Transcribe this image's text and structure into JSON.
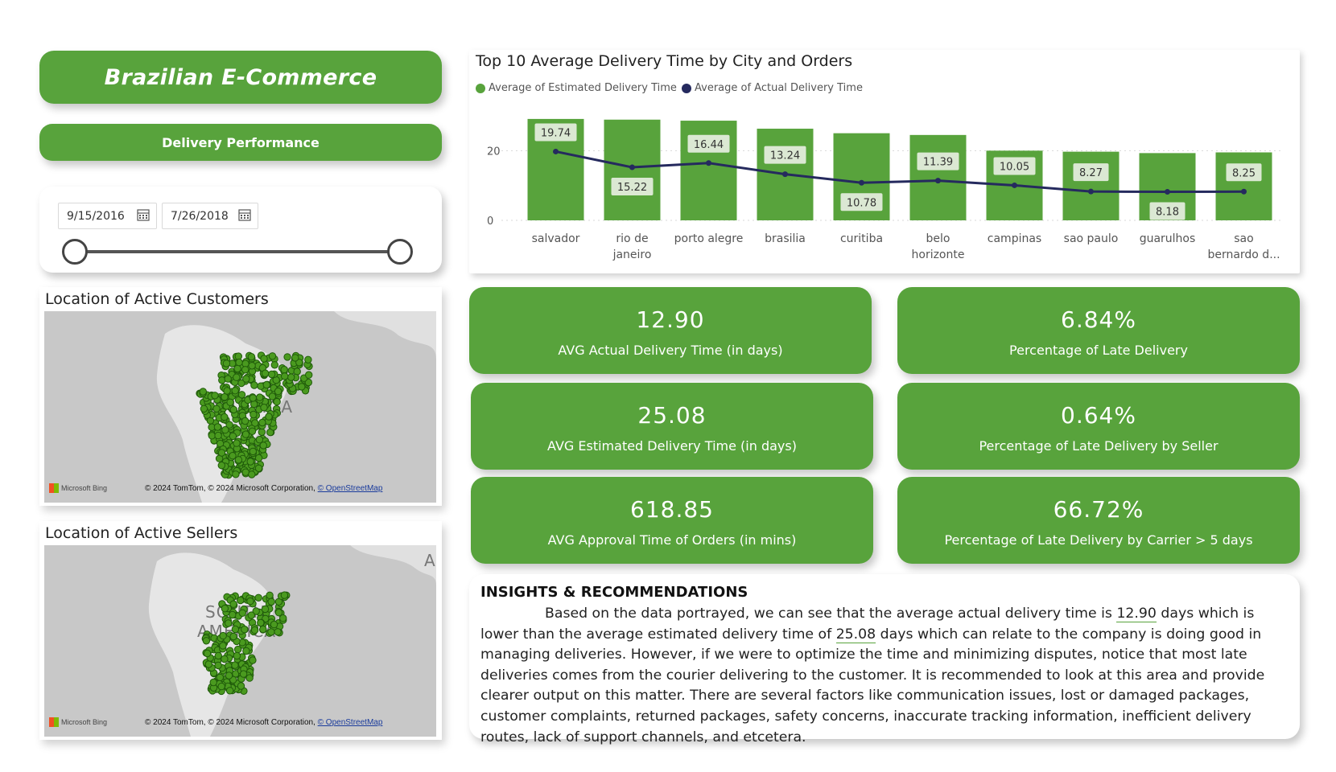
{
  "header": {
    "title": "Brazilian E-Commerce",
    "subtitle": "Delivery Performance"
  },
  "date_filter": {
    "start": "9/15/2016",
    "end": "7/26/2018",
    "calendar_icon": "calendar-icon"
  },
  "maps": {
    "customers_title": "Location of Active Customers",
    "sellers_title": "Location of Active Sellers",
    "map_label_customers": "AMERICA",
    "map_label_sellers_1": "SOUTH",
    "map_label_sellers_2": "AMERICA",
    "map_label_corner": "A",
    "bing": "Microsoft Bing",
    "copyright": "© 2024 TomTom, © 2024 Microsoft Corporation,",
    "osm": "© OpenStreetMap"
  },
  "chart_data": {
    "type": "bar",
    "title": "Top 10 Average Delivery Time by City and Orders",
    "categories": [
      "salvador",
      "rio de janeiro",
      "porto alegre",
      "brasilia",
      "curitiba",
      "belo horizonte",
      "campinas",
      "sao paulo",
      "guarulhos",
      "sao bernardo d..."
    ],
    "category_lines": [
      [
        "salvador"
      ],
      [
        "rio de",
        "janeiro"
      ],
      [
        "porto alegre"
      ],
      [
        "brasilia"
      ],
      [
        "curitiba"
      ],
      [
        "belo",
        "horizonte"
      ],
      [
        "campinas"
      ],
      [
        "sao paulo"
      ],
      [
        "guarulhos"
      ],
      [
        "sao",
        "bernardo d..."
      ]
    ],
    "series": [
      {
        "name": "Average of Estimated Delivery Time",
        "type": "bar",
        "color": "#58a33c",
        "values": [
          29.1,
          28.9,
          28.6,
          26.3,
          25.0,
          24.5,
          20.0,
          19.7,
          19.3,
          19.5
        ]
      },
      {
        "name": "Average of Actual Delivery Time",
        "type": "line",
        "color": "#252a5e",
        "values": [
          19.74,
          15.22,
          16.44,
          13.24,
          10.78,
          11.39,
          10.05,
          8.27,
          8.18,
          8.25
        ]
      }
    ],
    "data_labels": [
      "19.74",
      "15.22",
      "16.44",
      "13.24",
      "10.78",
      "11.39",
      "10.05",
      "8.27",
      "8.18",
      "8.25"
    ],
    "yticks": [
      "0",
      "20"
    ],
    "ylim": [
      0,
      30
    ],
    "legend_position": "top-left",
    "grid": true
  },
  "kpis": [
    {
      "value": "12.90",
      "label": "AVG Actual Delivery Time (in days)"
    },
    {
      "value": "6.84%",
      "label": "Percentage of Late Delivery"
    },
    {
      "value": "25.08",
      "label": "AVG Estimated Delivery Time (in days)"
    },
    {
      "value": "0.64%",
      "label": "Percentage of Late Delivery by Seller"
    },
    {
      "value": "618.85",
      "label": "AVG Approval Time of Orders (in mins)"
    },
    {
      "value": "66.72%",
      "label": "Percentage of Late Delivery by Carrier > 5 days"
    }
  ],
  "insights": {
    "heading": "INSIGHTS & RECOMMENDATIONS",
    "p1": "Based on the data portrayed, we can see that the average actual delivery time is ",
    "v1": "12.90",
    "p2": " days which is lower than the average estimated delivery time of ",
    "v2": "25.08",
    "p3": " days which can relate to the company is doing good in managing deliveries. However, if we were to optimize the time and minimizing disputes, notice that most late deliveries comes from the courier delivering to the customer. It is recommended to look at this area and provide clearer output on this matter. There are several factors like communication issues, lost or damaged packages, customer complaints, returned packages, safety concerns, inaccurate tracking information, inefficient delivery routes, lack of support channels, and etcetera."
  },
  "colors": {
    "accent_green": "#58a33c",
    "line_navy": "#252a5e",
    "map_gray": "#c8c8c8",
    "map_land": "#e6e6e6"
  }
}
